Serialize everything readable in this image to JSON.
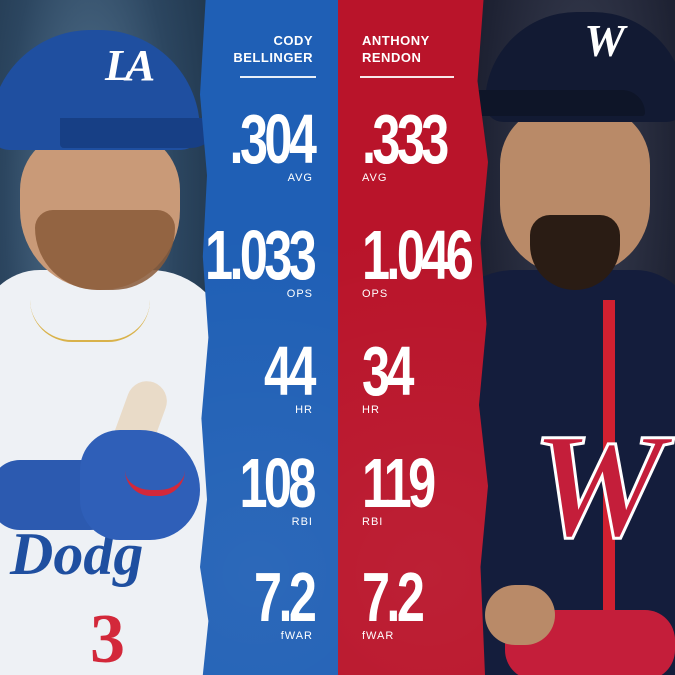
{
  "players": {
    "left": {
      "name_line1": "CODY",
      "name_line2": "BELLINGER",
      "team_color": "#1f5fb5",
      "cap_logo": "LA",
      "stats": [
        {
          "value": ".304",
          "label": "AVG"
        },
        {
          "value": "1.033",
          "label": "OPS"
        },
        {
          "value": "44",
          "label": "HR"
        },
        {
          "value": "108",
          "label": "RBI"
        },
        {
          "value": "7.2",
          "label": "fWAR"
        }
      ]
    },
    "right": {
      "name_line1": "ANTHONY",
      "name_line2": "RENDON",
      "team_color": "#b9142a",
      "cap_logo": "W",
      "stats": [
        {
          "value": ".333",
          "label": "AVG"
        },
        {
          "value": "1.046",
          "label": "OPS"
        },
        {
          "value": "34",
          "label": "HR"
        },
        {
          "value": "119",
          "label": "RBI"
        },
        {
          "value": "7.2",
          "label": "fWAR"
        }
      ]
    }
  }
}
